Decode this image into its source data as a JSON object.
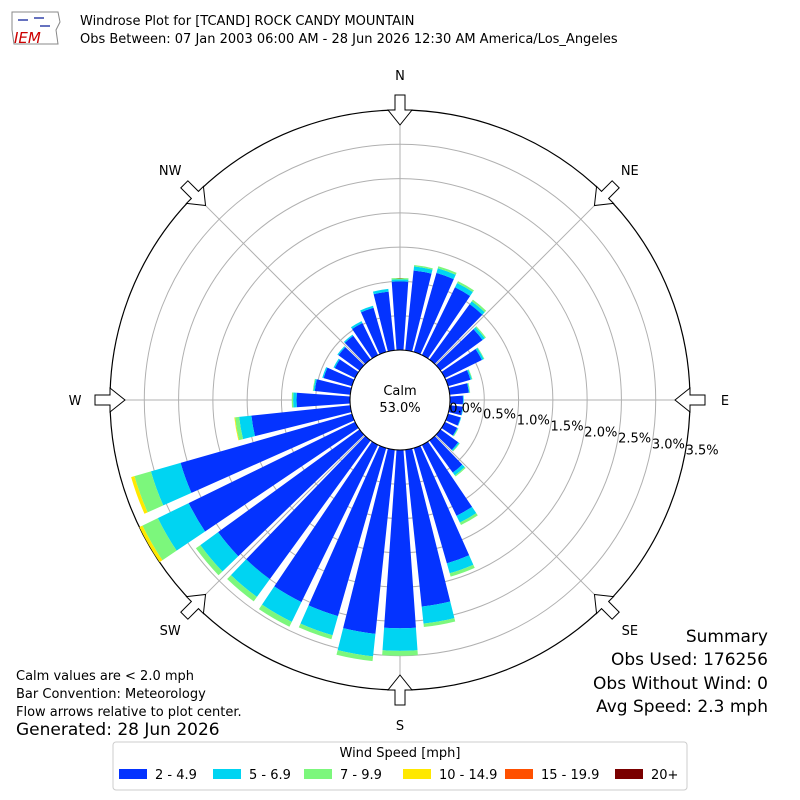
{
  "chart_data": {
    "type": "windrose",
    "logo": "IEM",
    "title": "Windrose Plot for [TCAND] ROCK CANDY MOUNTAIN",
    "subtitle": "Obs Between: 07 Jan 2003 06:00 AM - 28 Jun 2026 12:30 AM America/Los_Angeles",
    "compass": [
      "N",
      "NE",
      "E",
      "SE",
      "S",
      "SW",
      "W",
      "NW"
    ],
    "calm": {
      "label": "Calm",
      "value": 53.0,
      "value_label": "53.0%"
    },
    "rlim": [
      0,
      3.5
    ],
    "rticks": [
      {
        "value": 0,
        "label": "0.0%"
      },
      {
        "value": 0.5,
        "label": "0.5%"
      },
      {
        "value": 1,
        "label": "1.0%"
      },
      {
        "value": 1.5,
        "label": "1.5%"
      },
      {
        "value": 2,
        "label": "2.0%"
      },
      {
        "value": 2.5,
        "label": "2.5%"
      },
      {
        "value": 3,
        "label": "3.0%"
      },
      {
        "value": 3.5,
        "label": "3.5%"
      }
    ],
    "legend_title": "Wind Speed [mph]",
    "series": [
      {
        "name": "2 - 4.9",
        "color": "#0433ff",
        "values": [
          1.0,
          1.17,
          1.2,
          1.1,
          1.0,
          0.76,
          0.6,
          0.34,
          0.28,
          0.19,
          0.19,
          0.19,
          0.2,
          0.32,
          0.58,
          1.15,
          1.75,
          2.3,
          2.6,
          2.7,
          2.55,
          2.55,
          2.5,
          2.55,
          2.7,
          2.6,
          1.45,
          0.78,
          0.52,
          0.43,
          0.33,
          0.38,
          0.43,
          0.52,
          0.67,
          0.86
        ]
      },
      {
        "name": "5 - 6.9",
        "color": "#00d4f2",
        "values": [
          0.03,
          0.06,
          0.07,
          0.07,
          0.05,
          0.04,
          0.03,
          0.02,
          0.01,
          0.01,
          0.01,
          0.01,
          0.01,
          0.02,
          0.05,
          0.11,
          0.15,
          0.25,
          0.33,
          0.33,
          0.29,
          0.32,
          0.32,
          0.32,
          0.5,
          0.45,
          0.18,
          0.05,
          0.02,
          0.02,
          0.02,
          0.02,
          0.02,
          0.03,
          0.03,
          0.04
        ]
      },
      {
        "name": "7 - 9.9",
        "color": "#7cf77c",
        "values": [
          0.02,
          0.02,
          0.03,
          0.03,
          0.03,
          0.02,
          0.01,
          0.01,
          0.01,
          0,
          0,
          0,
          0.01,
          0.01,
          0.02,
          0.04,
          0.05,
          0.05,
          0.07,
          0.07,
          0.06,
          0.08,
          0.08,
          0.08,
          0.25,
          0.25,
          0.06,
          0.02,
          0.01,
          0,
          0,
          0,
          0,
          0,
          0,
          0
        ]
      },
      {
        "name": "10 - 14.9",
        "color": "#ffe800",
        "values": [
          0,
          0,
          0,
          0,
          0,
          0,
          0,
          0,
          0,
          0,
          0,
          0,
          0,
          0,
          0,
          0,
          0,
          0,
          0,
          0,
          0,
          0,
          0,
          0,
          0.05,
          0.05,
          0.01,
          0,
          0,
          0,
          0,
          0,
          0,
          0,
          0,
          0
        ]
      },
      {
        "name": "15 - 19.9",
        "color": "#ff5000",
        "values": [
          0,
          0,
          0,
          0,
          0,
          0,
          0,
          0,
          0,
          0,
          0,
          0,
          0,
          0,
          0,
          0,
          0,
          0,
          0,
          0,
          0,
          0,
          0,
          0,
          0,
          0,
          0,
          0,
          0,
          0,
          0,
          0,
          0,
          0,
          0,
          0
        ]
      },
      {
        "name": "20+",
        "color": "#7a0000",
        "values": [
          0,
          0,
          0,
          0,
          0,
          0,
          0,
          0,
          0,
          0,
          0,
          0,
          0,
          0,
          0,
          0,
          0,
          0,
          0,
          0,
          0,
          0,
          0,
          0,
          0,
          0,
          0,
          0,
          0,
          0,
          0,
          0,
          0,
          0,
          0,
          0
        ]
      }
    ],
    "summary": {
      "title": "Summary",
      "lines": [
        "Obs Used: 176256",
        "Obs Without Wind: 0",
        "Avg Speed: 2.3 mph"
      ]
    },
    "notes": [
      "Calm values are < 2.0 mph",
      "Bar Convention: Meteorology",
      "Flow arrows relative to plot center."
    ],
    "generated": "Generated: 28 Jun 2026"
  }
}
